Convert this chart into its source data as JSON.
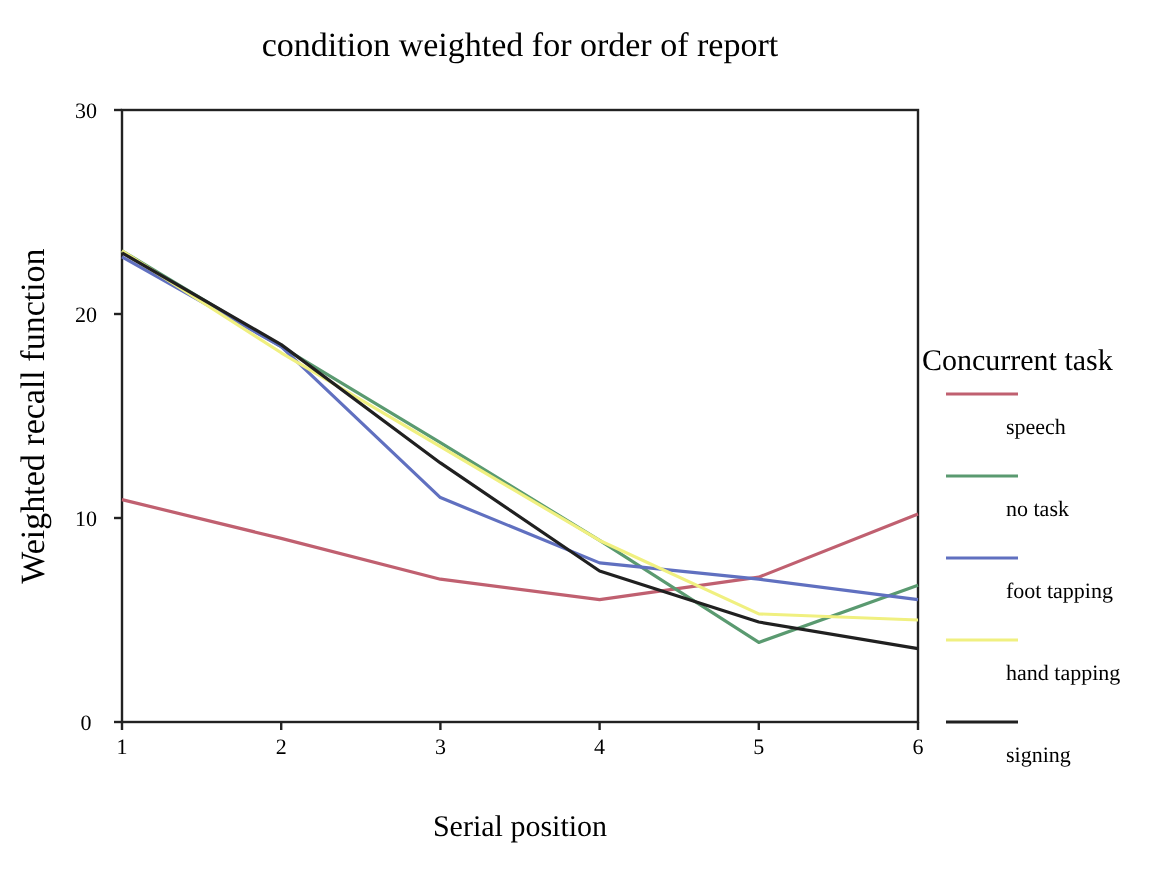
{
  "chart_data": {
    "type": "line",
    "title": "condition weighted for order of report",
    "xlabel": "Serial position",
    "ylabel": "Weighted recall function",
    "legend_title": "Concurrent task",
    "legend": "right",
    "grid": false,
    "x": [
      1,
      2,
      3,
      4,
      5,
      6
    ],
    "xlim": [
      1,
      6
    ],
    "xticks": [
      1,
      2,
      3,
      4,
      5,
      6
    ],
    "ylim": [
      0,
      30
    ],
    "yticks": [
      0,
      10,
      20,
      30
    ],
    "series": [
      {
        "name": "speech",
        "color": "#c06070",
        "values": [
          10.9,
          9.0,
          7.0,
          6.0,
          7.1,
          10.2
        ]
      },
      {
        "name": "no task",
        "color": "#5a9a70",
        "values": [
          23.1,
          18.4,
          13.7,
          8.9,
          3.9,
          6.7
        ]
      },
      {
        "name": "foot tapping",
        "color": "#6070c0",
        "values": [
          22.8,
          18.4,
          11.0,
          7.8,
          7.0,
          6.0
        ]
      },
      {
        "name": "hand tapping",
        "color": "#f0f080",
        "values": [
          23.1,
          18.1,
          13.5,
          8.9,
          5.3,
          5.0
        ]
      },
      {
        "name": "signing",
        "color": "#202020",
        "values": [
          23.0,
          18.5,
          12.7,
          7.4,
          4.9,
          3.6
        ]
      }
    ]
  }
}
